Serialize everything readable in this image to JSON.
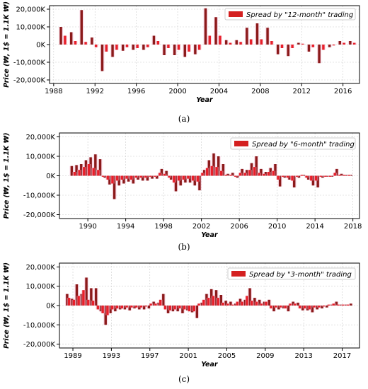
{
  "figure": {
    "panels": [
      {
        "label": "(a)",
        "chart_data": {
          "type": "bar",
          "xlabel": "Year",
          "ylabel": "Price (₩, 1$ = 1.1K ₩)",
          "legend": "Spread by \"12-month\" trading",
          "legend_position": "top-right",
          "grid": true,
          "xlim": [
            1987.6,
            2017.6
          ],
          "ylim": [
            -22000,
            22000
          ],
          "xticks": [
            1988,
            1992,
            1996,
            2000,
            2004,
            2008,
            2012,
            2016
          ],
          "yticks": [
            -20000,
            -10000,
            0,
            10000,
            20000
          ],
          "ytick_labels": [
            "-20,000K",
            "-10,000K",
            "0K",
            "10,000K",
            "20,000K"
          ],
          "series": [
            {
              "x": [
                1988.7,
                1989.7,
                1990.7,
                1991.7,
                1992.7,
                1993.7,
                1994.7,
                1995.7,
                1996.7,
                1997.7,
                1998.7,
                1999.7,
                2000.7,
                2001.7,
                2002.7,
                2003.7,
                2004.7,
                2005.7,
                2006.7,
                2007.7,
                2008.7,
                2009.7,
                2010.7,
                2011.7,
                2012.7,
                2013.7,
                2014.7,
                2015.7,
                2016.7
              ],
              "y": [
                10000,
                7000,
                19500,
                4000,
                -15000,
                -7000,
                -3500,
                -3000,
                -3000,
                5000,
                -6000,
                -6000,
                -7000,
                -5500,
                20500,
                15500,
                2500,
                2500,
                9500,
                12000,
                9500,
                -5500,
                -6500,
                1000,
                -4000,
                -10500,
                -1500,
                2000,
                2000
              ]
            },
            {
              "x": [
                1989.1,
                1990.1,
                1991.1,
                1992.1,
                1993.1,
                1994.1,
                1995.1,
                1996.1,
                1997.1,
                1998.1,
                1999.1,
                2000.1,
                2001.1,
                2002.1,
                2003.1,
                2004.1,
                2005.1,
                2006.1,
                2007.1,
                2008.1,
                2009.1,
                2010.1,
                2011.1,
                2012.1,
                2013.1,
                2014.1,
                2015.1,
                2016.1,
                2017.1
              ],
              "y": [
                5000,
                2000,
                1500,
                -1500,
                -4000,
                -3000,
                -1500,
                -2000,
                -1500,
                2000,
                -2000,
                -3000,
                -4000,
                -3000,
                5000,
                5000,
                1000,
                1500,
                3000,
                3000,
                2000,
                -2000,
                -2000,
                500,
                -1500,
                -3000,
                -500,
                1000,
                1000
              ]
            }
          ]
        }
      },
      {
        "label": "(b)",
        "chart_data": {
          "type": "bar",
          "xlabel": "Year",
          "ylabel": "Price (₩, 1$ = 1.1K ₩)",
          "legend": "Spread by \"6-month\" trading",
          "legend_position": "top-right",
          "grid": true,
          "xlim": [
            1987,
            2018.7
          ],
          "ylim": [
            -22000,
            22000
          ],
          "xticks": [
            1990,
            1994,
            1998,
            2002,
            2006,
            2010,
            2014,
            2018
          ],
          "yticks": [
            -20000,
            -10000,
            0,
            10000,
            20000
          ],
          "ytick_labels": [
            "-20,000K",
            "-10,000K",
            "0K",
            "10,000K",
            "20,000K"
          ],
          "series": [
            {
              "x": [
                1988.3,
                1988.8,
                1989.3,
                1989.8,
                1990.3,
                1990.8,
                1991.3,
                1991.8,
                1992.3,
                1992.8,
                1993.3,
                1993.8,
                1994.3,
                1994.8,
                1995.3,
                1995.8,
                1996.3,
                1996.8,
                1997.3,
                1997.8,
                1998.3,
                1998.8,
                1999.3,
                1999.8,
                2000.3,
                2000.8,
                2001.3,
                2001.8,
                2002.3,
                2002.8,
                2003.3,
                2003.8,
                2004.3,
                2004.8,
                2005.3,
                2005.8,
                2006.3,
                2006.8,
                2007.3,
                2007.8,
                2008.3,
                2008.8,
                2009.3,
                2009.8,
                2010.3,
                2010.8,
                2011.3,
                2011.8,
                2012.3,
                2012.8,
                2013.3,
                2013.8,
                2014.3,
                2014.8,
                2015.3,
                2015.8,
                2016.3,
                2016.8,
                2017.3,
                2017.8
              ],
              "y": [
                5000,
                5500,
                6000,
                8000,
                9500,
                11000,
                8500,
                -1000,
                -4500,
                -12000,
                -5000,
                -4000,
                -3000,
                -4000,
                -2000,
                -2500,
                -2500,
                -1500,
                -1500,
                3500,
                2500,
                -2000,
                -8000,
                -5000,
                -3500,
                -3500,
                -5000,
                -7500,
                3000,
                8000,
                11500,
                10000,
                6000,
                1000,
                1500,
                -1000,
                3500,
                3000,
                6500,
                10000,
                3500,
                2000,
                4000,
                6000,
                -5500,
                -1000,
                -2000,
                -6000,
                -1000,
                500,
                -2000,
                -5000,
                -6000,
                -1000,
                -500,
                -500,
                3500,
                1000,
                500,
                500
              ]
            },
            {
              "x": [
                1988.6,
                1989.1,
                1989.6,
                1990.1,
                1990.6,
                1991.1,
                1991.6,
                1992.1,
                1992.6,
                1993.1,
                1993.6,
                1994.1,
                1994.6,
                1995.1,
                1995.6,
                1996.1,
                1996.6,
                1997.1,
                1997.6,
                1998.1,
                1998.6,
                1999.1,
                1999.6,
                2000.1,
                2000.6,
                2001.1,
                2001.6,
                2002.1,
                2002.6,
                2003.1,
                2003.6,
                2004.1,
                2004.6,
                2005.1,
                2005.6,
                2006.1,
                2006.6,
                2007.1,
                2007.6,
                2008.1,
                2008.6,
                2009.1,
                2009.6,
                2010.1,
                2010.6,
                2011.1,
                2011.6,
                2012.1,
                2012.6,
                2013.1,
                2013.6,
                2014.1,
                2014.6,
                2015.1,
                2015.6,
                2016.1,
                2016.6,
                2017.1,
                2017.6
              ],
              "y": [
                2000,
                3000,
                4500,
                6000,
                4000,
                3000,
                -500,
                -2000,
                -4000,
                -2500,
                -2000,
                -1500,
                -2000,
                -1000,
                -1000,
                -1000,
                -500,
                -500,
                1500,
                1000,
                -1000,
                -3500,
                -2500,
                -2000,
                -1500,
                -2500,
                -3000,
                1500,
                4000,
                5000,
                4500,
                2500,
                500,
                500,
                -500,
                1500,
                1500,
                3000,
                4500,
                1500,
                1000,
                2000,
                2500,
                -2000,
                -500,
                -1000,
                -2500,
                -500,
                500,
                -1000,
                -2500,
                -2500,
                -500,
                -500,
                -500,
                1500,
                500,
                500,
                500
              ]
            }
          ]
        }
      },
      {
        "label": "(c)",
        "chart_data": {
          "type": "bar",
          "xlabel": "Year",
          "ylabel": "Price (₩, 1$ = 1.1K ₩)",
          "legend": "Spread by \"3-month\" trading",
          "legend_position": "top-right",
          "grid": true,
          "xlim": [
            1987.6,
            2018.8
          ],
          "ylim": [
            -22000,
            22000
          ],
          "xticks": [
            1989,
            1993,
            1997,
            2001,
            2005,
            2009,
            2013,
            2017
          ],
          "yticks": [
            -20000,
            -10000,
            0,
            10000,
            20000
          ],
          "ytick_labels": [
            "-20,000K",
            "-10,000K",
            "0K",
            "10,000K",
            "20,000K"
          ],
          "series": [
            {
              "x": [
                1988.4,
                1988.9,
                1989.4,
                1989.9,
                1990.4,
                1990.9,
                1991.4,
                1991.9,
                1992.4,
                1992.9,
                1993.4,
                1993.9,
                1994.4,
                1994.9,
                1995.4,
                1995.9,
                1996.4,
                1996.9,
                1997.4,
                1997.9,
                1998.4,
                1998.9,
                1999.4,
                1999.9,
                2000.4,
                2000.9,
                2001.4,
                2001.9,
                2002.4,
                2002.9,
                2003.4,
                2003.9,
                2004.4,
                2004.9,
                2005.4,
                2005.9,
                2006.4,
                2006.9,
                2007.4,
                2007.9,
                2008.4,
                2008.9,
                2009.4,
                2009.9,
                2010.4,
                2010.9,
                2011.4,
                2011.9,
                2012.4,
                2012.9,
                2013.4,
                2013.9,
                2014.4,
                2014.9,
                2015.4,
                2015.9,
                2016.4,
                2016.9,
                2017.4,
                2017.9
              ],
              "y": [
                6000,
                3500,
                11000,
                6000,
                14500,
                9000,
                9000,
                -3000,
                -10000,
                -4000,
                -3000,
                -2000,
                -2000,
                -2500,
                -1500,
                -2000,
                -2000,
                -1500,
                2000,
                1500,
                6000,
                -4000,
                -3000,
                -3000,
                -4000,
                -2500,
                -3500,
                -6500,
                1500,
                6000,
                8500,
                8000,
                5500,
                2500,
                2000,
                1000,
                3500,
                3000,
                9000,
                4000,
                3000,
                2000,
                3000,
                -3000,
                -2000,
                -1500,
                -3000,
                2000,
                1500,
                -2500,
                -2500,
                -3500,
                -2000,
                -1500,
                -1000,
                500,
                2000,
                500,
                500,
                1000
              ]
            },
            {
              "x": [
                1988.6,
                1989.1,
                1989.6,
                1990.1,
                1990.6,
                1991.1,
                1991.6,
                1992.1,
                1992.6,
                1993.1,
                1993.6,
                1994.1,
                1994.6,
                1995.1,
                1995.6,
                1996.1,
                1996.6,
                1997.1,
                1997.6,
                1998.1,
                1998.6,
                1999.1,
                1999.6,
                2000.1,
                2000.6,
                2001.1,
                2001.6,
                2002.1,
                2002.6,
                2003.1,
                2003.6,
                2004.1,
                2004.6,
                2005.1,
                2005.6,
                2006.1,
                2006.6,
                2007.1,
                2007.6,
                2008.1,
                2008.6,
                2009.1,
                2009.6,
                2010.1,
                2010.6,
                2011.1,
                2011.6,
                2012.1,
                2012.6,
                2013.1,
                2013.6,
                2014.1,
                2014.6,
                2015.1,
                2015.6,
                2016.1,
                2016.6,
                2017.1,
                2017.6
              ],
              "y": [
                4000,
                3000,
                5000,
                8000,
                3000,
                2500,
                -2000,
                -4000,
                -5000,
                -2000,
                -1500,
                -1500,
                -1000,
                -1000,
                -1000,
                -1000,
                -500,
                1000,
                1000,
                3000,
                -2000,
                -2500,
                -2000,
                -1500,
                -2000,
                -3000,
                -3000,
                1000,
                3000,
                4000,
                5000,
                4000,
                1500,
                1000,
                500,
                2000,
                2000,
                5000,
                2500,
                2000,
                1000,
                2000,
                -1500,
                -1000,
                -1000,
                -1500,
                1000,
                1000,
                -1500,
                -1500,
                -2000,
                -1000,
                -1000,
                -500,
                500,
                1000,
                500,
                500,
                500
              ]
            }
          ]
        }
      }
    ]
  },
  "colors": {
    "primary": "#8b1a1a",
    "secondary": "#e8202a",
    "shadow": "#f2b6ce",
    "legend_patch": "#d42020",
    "grid": "#cccccc",
    "axis": "#000000"
  }
}
